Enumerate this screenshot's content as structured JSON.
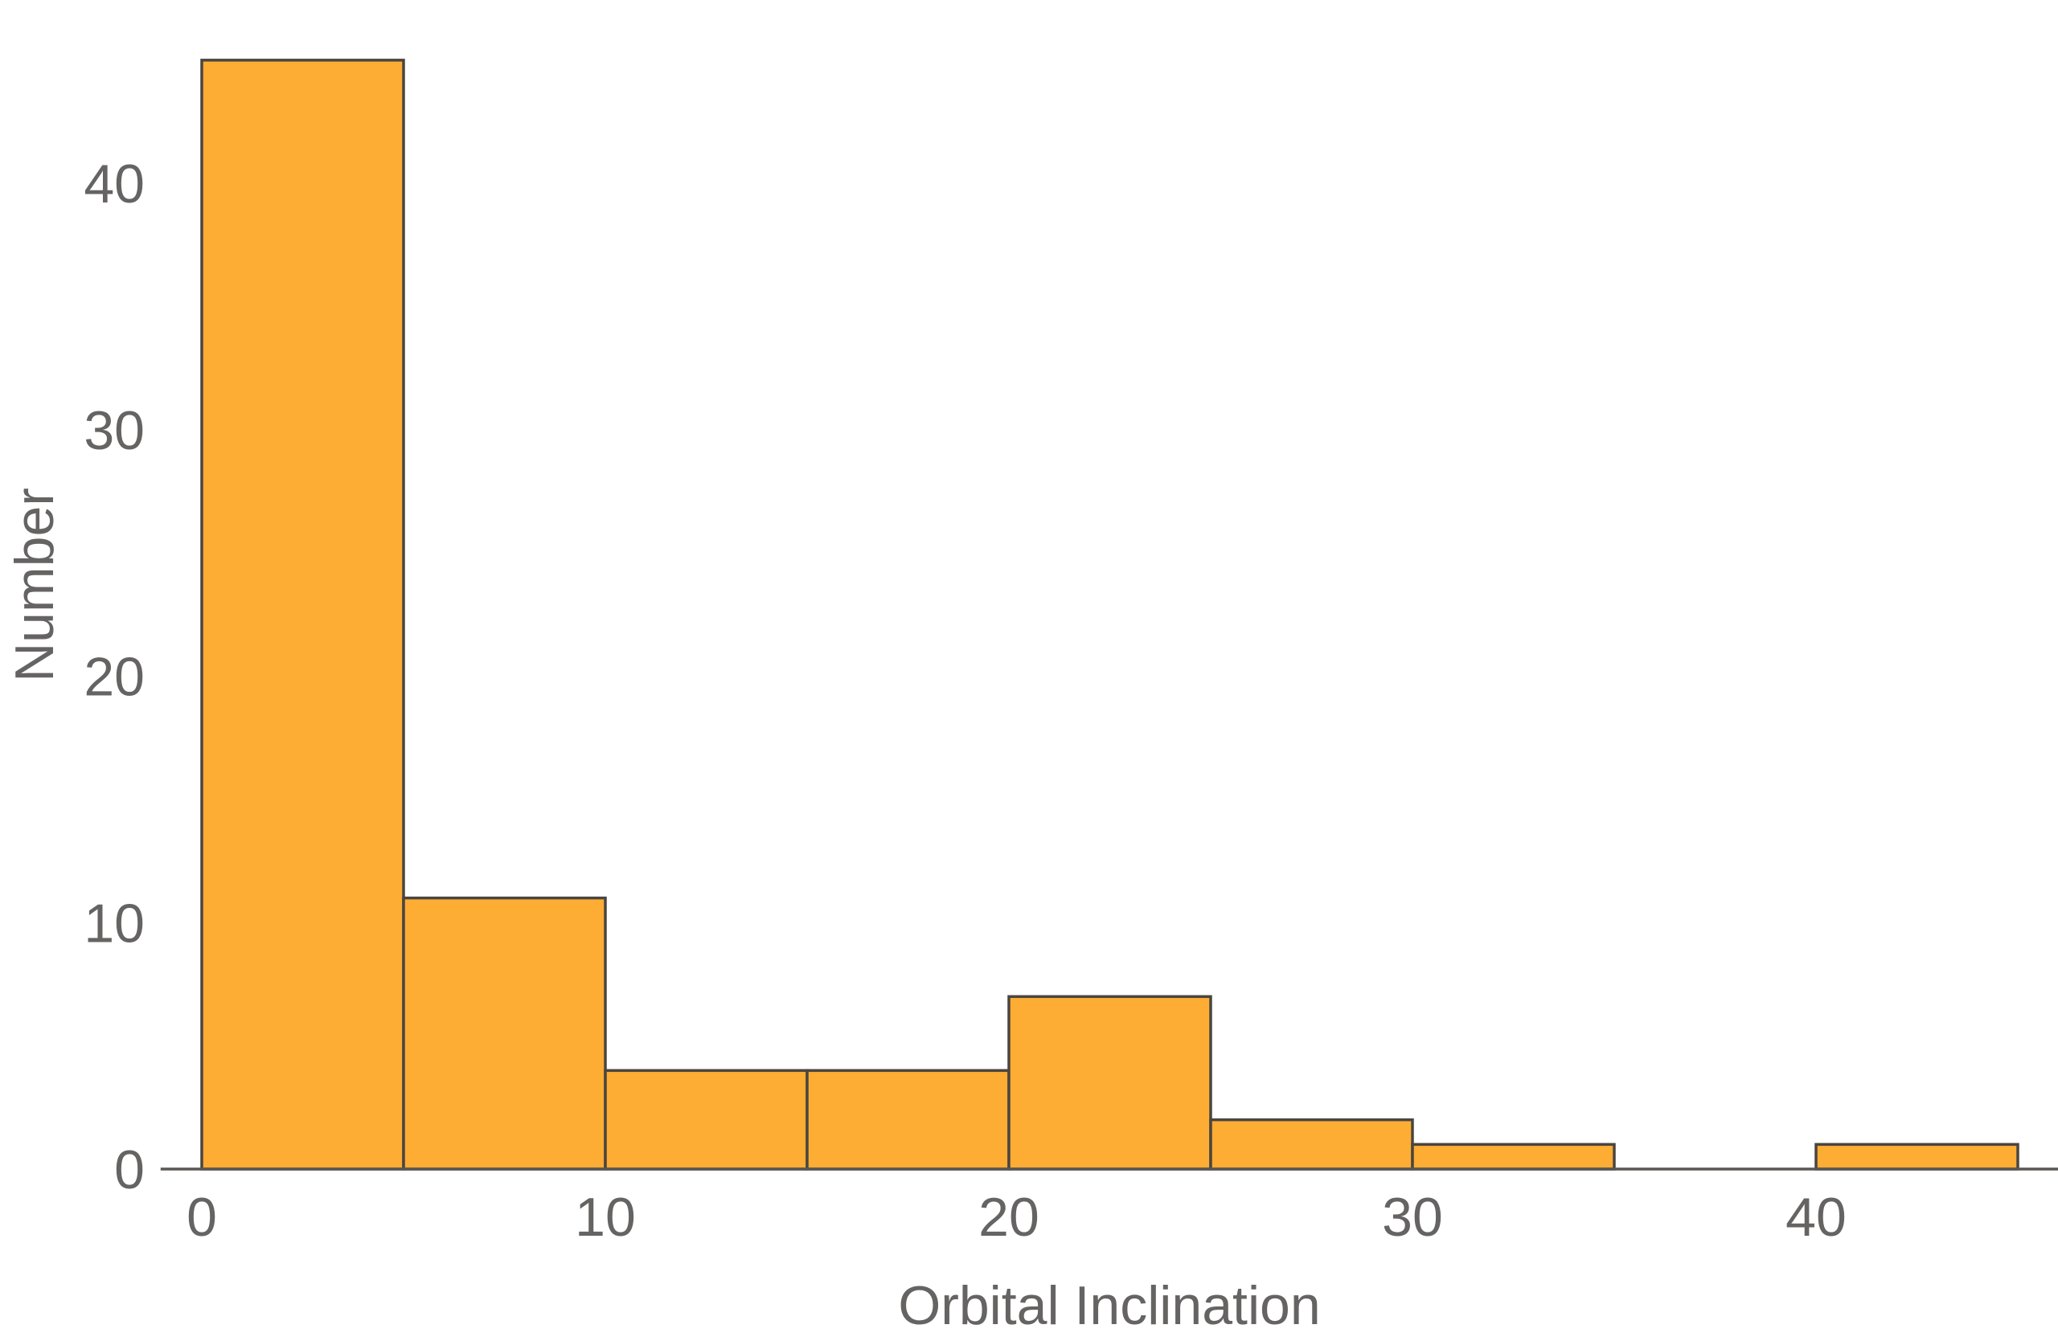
{
  "chart_data": {
    "type": "bar",
    "variant": "histogram",
    "title": "",
    "xlabel": "Orbital Inclination",
    "ylabel": "Number",
    "bins": [
      {
        "x0": 0,
        "x1": 5,
        "value": 45
      },
      {
        "x0": 5,
        "x1": 10,
        "value": 11
      },
      {
        "x0": 10,
        "x1": 15,
        "value": 4
      },
      {
        "x0": 15,
        "x1": 20,
        "value": 4
      },
      {
        "x0": 20,
        "x1": 25,
        "value": 7
      },
      {
        "x0": 25,
        "x1": 30,
        "value": 2
      },
      {
        "x0": 30,
        "x1": 35,
        "value": 1
      },
      {
        "x0": 35,
        "x1": 40,
        "value": 0
      },
      {
        "x0": 40,
        "x1": 45,
        "value": 1
      }
    ],
    "xticks": [
      0,
      10,
      20,
      30,
      40
    ],
    "yticks": [
      0,
      10,
      20,
      30,
      40
    ],
    "xlim": [
      -1,
      46
    ],
    "ylim": [
      0,
      45
    ],
    "grid": false,
    "colors": {
      "bar_fill": "#FDAD33",
      "bar_stroke": "#4A4540",
      "axis": "#5A5654",
      "text": "#666363"
    }
  }
}
